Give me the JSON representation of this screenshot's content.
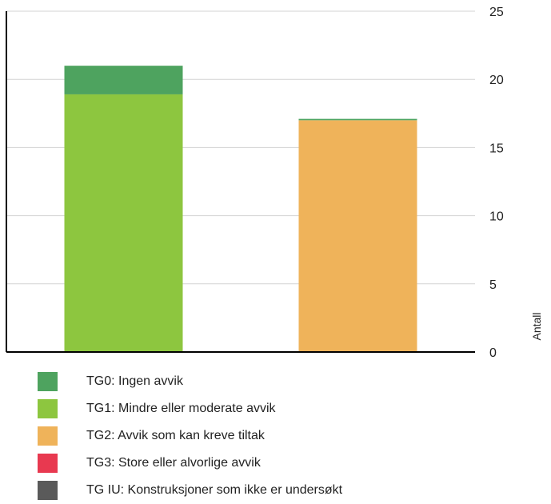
{
  "chart_data": {
    "type": "bar",
    "stacked": true,
    "categories": [
      "",
      ""
    ],
    "series": [
      {
        "name": "TG0: Ingen avvik",
        "color": "#4ea35f",
        "values": [
          2.1,
          0.1
        ]
      },
      {
        "name": "TG1: Mindre eller moderate avvik",
        "color": "#8dc63f",
        "values": [
          18.9,
          0
        ]
      },
      {
        "name": "TG2: Avvik som kan kreve tiltak",
        "color": "#efb35a",
        "values": [
          0,
          17
        ]
      },
      {
        "name": "TG3: Store eller alvorlige avvik",
        "color": "#e83950",
        "values": [
          0,
          0
        ]
      },
      {
        "name": "TG IU: Konstruksjoner som ikke er undersøkt",
        "color": "#5a5a5a",
        "values": [
          0,
          0
        ]
      }
    ],
    "yticks": [
      "0",
      "5",
      "10",
      "15",
      "20",
      "25"
    ],
    "ylim": [
      0,
      25
    ],
    "ylabel": "Antall",
    "xlabel": "",
    "title": "",
    "grid": true,
    "y_axis_side": "right",
    "legend_position": "bottom"
  }
}
